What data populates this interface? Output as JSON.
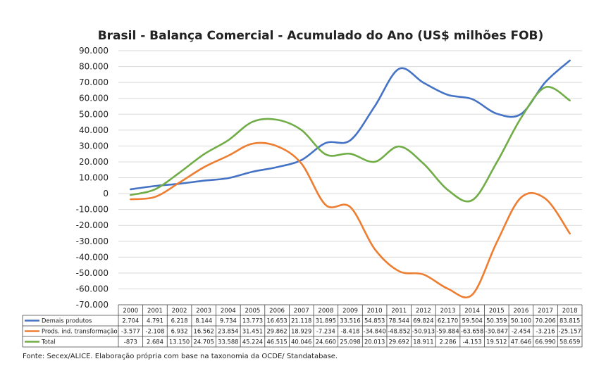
{
  "chart_data": {
    "type": "line",
    "title": "Brasil - Balança Comercial - Acumulado do Ano (US$ milhões FOB)",
    "xlabel": "",
    "ylabel": "",
    "ylim": [
      -70000,
      90000
    ],
    "yticks": [
      90000,
      80000,
      70000,
      60000,
      50000,
      40000,
      30000,
      20000,
      10000,
      0,
      -10000,
      -20000,
      -30000,
      -40000,
      -50000,
      -60000,
      -70000
    ],
    "ytick_labels": [
      "90.000",
      "80.000",
      "70.000",
      "60.000",
      "50.000",
      "40.000",
      "30.000",
      "20.000",
      "10.000",
      "0",
      "-10.000",
      "-20.000",
      "-30.000",
      "-40.000",
      "-50.000",
      "-60.000",
      "-70.000"
    ],
    "grid": true,
    "legend": "data-table-below",
    "categories": [
      "2000",
      "2001",
      "2002",
      "2003",
      "2004",
      "2005",
      "2006",
      "2007",
      "2008",
      "2009",
      "2010",
      "2011",
      "2012",
      "2013",
      "2014",
      "2015",
      "2016",
      "2017",
      "2018"
    ],
    "series": [
      {
        "name": "Demais produtos",
        "color": "#4472c4",
        "values": [
          2704,
          4791,
          6218,
          8144,
          9734,
          13773,
          16653,
          21118,
          31895,
          33516,
          54853,
          78544,
          69824,
          62170,
          59504,
          50359,
          50100,
          70206,
          83815
        ],
        "labels": [
          "2.704",
          "4.791",
          "6.218",
          "8.144",
          "9.734",
          "13.773",
          "16.653",
          "21.118",
          "31.895",
          "33.516",
          "54.853",
          "78.544",
          "69.824",
          "62.170",
          "59.504",
          "50.359",
          "50.100",
          "70.206",
          "83.815"
        ]
      },
      {
        "name": "Prods. ind. transformação",
        "color": "#ed7d31",
        "values": [
          -3577,
          -2108,
          6932,
          16562,
          23854,
          31451,
          29862,
          18929,
          -7234,
          -8418,
          -34840,
          -48852,
          -50913,
          -59884,
          -63658,
          -30847,
          -2454,
          -3216,
          -25157
        ],
        "labels": [
          "-3.577",
          "-2.108",
          "6.932",
          "16.562",
          "23.854",
          "31.451",
          "29.862",
          "18.929",
          "-7.234",
          "-8.418",
          "-34.840",
          "-48.852",
          "-50.913",
          "-59.884",
          "-63.658",
          "-30.847",
          "-2.454",
          "-3.216",
          "-25.157"
        ]
      },
      {
        "name": "Total",
        "color": "#70ad47",
        "values": [
          -873,
          2684,
          13150,
          24705,
          33588,
          45224,
          46515,
          40046,
          24660,
          25098,
          20013,
          29692,
          18911,
          2286,
          -4153,
          19512,
          47646,
          66990,
          58659
        ],
        "labels": [
          "-873",
          "2.684",
          "13.150",
          "24.705",
          "33.588",
          "45.224",
          "46.515",
          "40.046",
          "24.660",
          "25.098",
          "20.013",
          "29.692",
          "18.911",
          "2.286",
          "-4.153",
          "19.512",
          "47.646",
          "66.990",
          "58.659"
        ]
      }
    ]
  },
  "source_note": "Fonte: Secex/ALICE. Elaboração própria com base na taxonomia da OCDE/ Standatabase."
}
